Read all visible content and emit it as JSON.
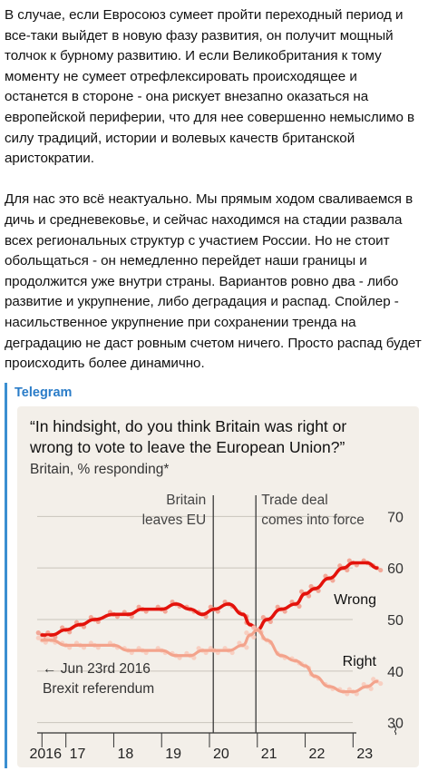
{
  "post": {
    "paragraph_1": "В случае, если Евросоюз сумеет пройти переходный период и все-таки выйдет в новую фазу развития, он получит мощный толчок к бурному развитию. И если Великобритания к тому моменту не сумеет отрефлексировать происходящее и останется в стороне - она рискует внезапно оказаться на европейской периферии, что для нее совершенно немыслимо в силу традиций, истории и волевых качеств британской аристократии.",
    "paragraph_2": "Для нас это всё неактуально. Мы прямым ходом сваливаемся в дичь и средневековье, и сейчас находимся на стадии развала всех региональных структур с участием России. Но не стоит обольщаться - он немедленно перейдет наши границы и продолжится уже внутри страны. Вариантов ровно два - либо развитие и укрупнение, либо деградация и распад. Спойлер - насильственное укрупнение при сохранении тренда на деградацию не даст ровным счетом ничего. Просто распад будет происходить более динамично."
  },
  "link_preview": {
    "site_name": "Telegram",
    "accent_color": "#3b8fd1"
  },
  "chart_data": {
    "type": "line",
    "title": "“In hindsight, do you think Britain was right or wrong to vote to leave the European Union?”",
    "subtitle": "Britain, % responding*",
    "x_tick_labels": [
      "2016",
      "17",
      "18",
      "19",
      "20",
      "21",
      "22",
      "23"
    ],
    "x_ticks": [
      2016.5,
      2017.0,
      2018.0,
      2019.0,
      2020.0,
      2021.0,
      2022.0,
      2023.0
    ],
    "xlim": [
      2016.4,
      2023.6
    ],
    "y_ticks": [
      30,
      40,
      50,
      60,
      70
    ],
    "ylim": [
      28,
      72
    ],
    "grid": true,
    "y_axis_side": "right",
    "colors": {
      "wrong": "#e3120b",
      "right": "#f3a38c",
      "background": "#f3efe9",
      "grid": "#c9c4bc",
      "event_line": "#3a3a3a"
    },
    "events": [
      {
        "x": 2020.08,
        "label_lines": [
          "Britain",
          "leaves EU"
        ],
        "align": "right"
      },
      {
        "x": 2020.97,
        "label_lines": [
          "Trade deal",
          "comes into force"
        ],
        "align": "left"
      }
    ],
    "annotation": {
      "lines": [
        "← Jun 23rd 2016",
        "Brexit referendum"
      ]
    },
    "series": [
      {
        "name": "Wrong",
        "x": [
          2016.5,
          2016.7,
          2017.0,
          2017.3,
          2017.6,
          2018.0,
          2018.3,
          2018.6,
          2019.0,
          2019.3,
          2019.6,
          2019.85,
          2020.1,
          2020.4,
          2020.7,
          2020.85,
          2021.0,
          2021.2,
          2021.5,
          2021.8,
          2022.0,
          2022.2,
          2022.5,
          2022.8,
          2023.0,
          2023.3,
          2023.5
        ],
        "values": [
          47,
          47,
          48,
          49,
          50,
          51,
          51,
          52,
          52,
          53,
          52,
          51,
          52,
          53,
          51,
          49,
          48,
          50,
          52,
          53,
          55,
          56,
          58,
          60,
          61,
          61,
          60
        ]
      },
      {
        "name": "Right",
        "x": [
          2016.5,
          2016.7,
          2017.0,
          2017.3,
          2017.6,
          2018.0,
          2018.3,
          2018.6,
          2019.0,
          2019.3,
          2019.6,
          2019.85,
          2020.1,
          2020.4,
          2020.7,
          2020.85,
          2021.0,
          2021.2,
          2021.5,
          2021.8,
          2022.0,
          2022.2,
          2022.5,
          2022.8,
          2023.0,
          2023.3,
          2023.5
        ],
        "values": [
          46,
          46,
          45,
          45,
          45,
          45,
          44,
          44,
          44,
          43,
          43,
          44,
          44,
          44,
          45,
          47,
          48,
          46,
          43,
          42,
          41,
          39,
          37,
          36,
          36,
          37,
          38
        ]
      }
    ]
  }
}
